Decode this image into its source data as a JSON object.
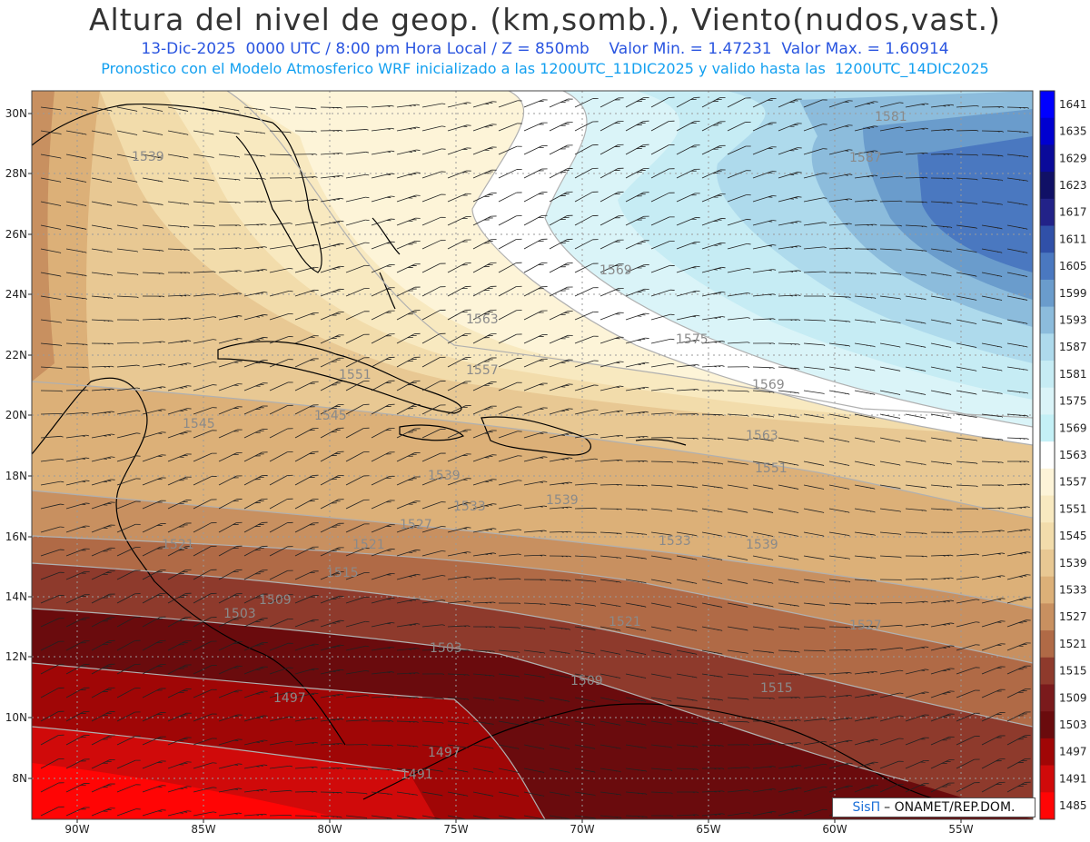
{
  "header": {
    "title": "Altura del nivel de geop. (km,somb.), Viento(nudos,vast.)",
    "line1": "13-Dic-2025  0000 UTC / 8:00 pm Hora Local / Z = 850mb    Valor Min. = 1.47231  Valor Max. = 1.60914",
    "line2": "Pronostico con el Modelo Atmosferico WRF inicializado a las 1200UTC_11DIC2025 y valido hasta las  1200UTC_14DIC2025"
  },
  "credit": {
    "logo": "SisΠ",
    "text": "– ONAMET/REP.DOM."
  },
  "axes": {
    "lat_labels": [
      "30N",
      "28N",
      "26N",
      "24N",
      "22N",
      "20N",
      "18N",
      "16N",
      "14N",
      "12N",
      "10N",
      "8N"
    ],
    "lon_labels": [
      "90W",
      "85W",
      "80W",
      "75W",
      "70W",
      "65W",
      "60W",
      "55W"
    ]
  },
  "colorbar": {
    "labels": [
      "1641",
      "1635",
      "1629",
      "1623",
      "1617",
      "1611",
      "1605",
      "1599",
      "1593",
      "1587",
      "1581",
      "1575",
      "1569",
      "1563",
      "1557",
      "1551",
      "1545",
      "1539",
      "1533",
      "1527",
      "1521",
      "1515",
      "1509",
      "1503",
      "1497",
      "1491",
      "1485"
    ],
    "colors": [
      "#0000ff",
      "#0000d0",
      "#0a0a9a",
      "#101066",
      "#222288",
      "#3050a8",
      "#4a78c0",
      "#6a9ccc",
      "#8cbcdc",
      "#aedaec",
      "#c6ecf4",
      "#daf4f8",
      "#c4f0f6",
      "#ffffff",
      "#fdf4d8",
      "#f8e9c0",
      "#f2dcab",
      "#e8c893",
      "#dcb078",
      "#c89060",
      "#b06a46",
      "#8e3a2c",
      "#7a1a1c",
      "#6a0b0d",
      "#a00606",
      "#d00a0a",
      "#ff0505"
    ]
  },
  "contour_labels": [
    {
      "text": "1539"
    },
    {
      "text": "1581"
    },
    {
      "text": "1587"
    },
    {
      "text": "1569"
    },
    {
      "text": "1563"
    },
    {
      "text": "1575"
    },
    {
      "text": "1569"
    },
    {
      "text": "1551"
    },
    {
      "text": "1557"
    },
    {
      "text": "1545"
    },
    {
      "text": "1545"
    },
    {
      "text": "1539"
    },
    {
      "text": "1533"
    },
    {
      "text": "1539"
    },
    {
      "text": "1563"
    },
    {
      "text": "1551"
    },
    {
      "text": "1539"
    },
    {
      "text": "1521"
    },
    {
      "text": "1521"
    },
    {
      "text": "1527"
    },
    {
      "text": "1515"
    },
    {
      "text": "1509"
    },
    {
      "text": "1503"
    },
    {
      "text": "1503"
    },
    {
      "text": "1509"
    },
    {
      "text": "1497"
    },
    {
      "text": "1497"
    },
    {
      "text": "1491"
    },
    {
      "text": "1515"
    },
    {
      "text": "1521"
    },
    {
      "text": "1527"
    },
    {
      "text": "1533"
    }
  ]
}
